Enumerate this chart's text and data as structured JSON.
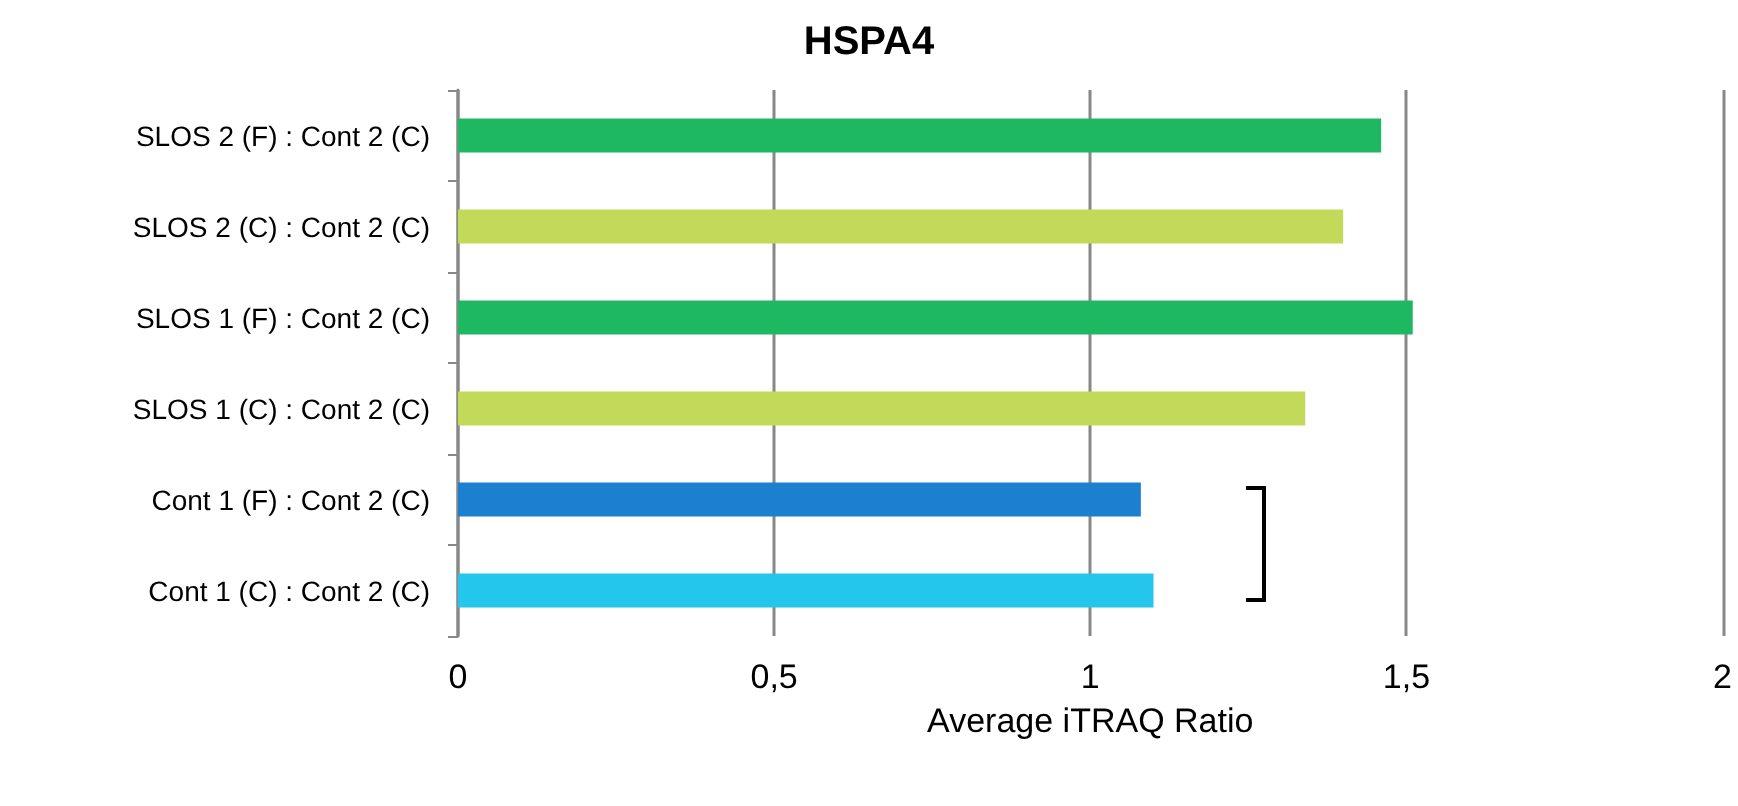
{
  "chart_data": {
    "type": "bar",
    "orientation": "horizontal",
    "title": "HSPA4",
    "xlabel": "Average iTRAQ Ratio",
    "categories": [
      "SLOS 2 (F) : Cont 2 (C)",
      "SLOS 2 (C) : Cont 2 (C)",
      "SLOS 1 (F) : Cont 2 (C)",
      "SLOS 1 (C) : Cont 2 (C)",
      "Cont 1 (F) : Cont 2 (C)",
      "Cont 1 (C) : Cont 2 (C)"
    ],
    "values": [
      1.46,
      1.4,
      1.51,
      1.34,
      1.08,
      1.1
    ],
    "colors": [
      "#1fb862",
      "#c2d95a",
      "#1fb862",
      "#c2d95a",
      "#1c7fcf",
      "#25c6ec"
    ],
    "xlim": [
      0,
      2
    ],
    "xticks": [
      0,
      {
        "value": 0.5,
        "label": "0,5"
      },
      1,
      {
        "value": 1.5,
        "label": "1,5"
      },
      2
    ],
    "grid": "x"
  }
}
